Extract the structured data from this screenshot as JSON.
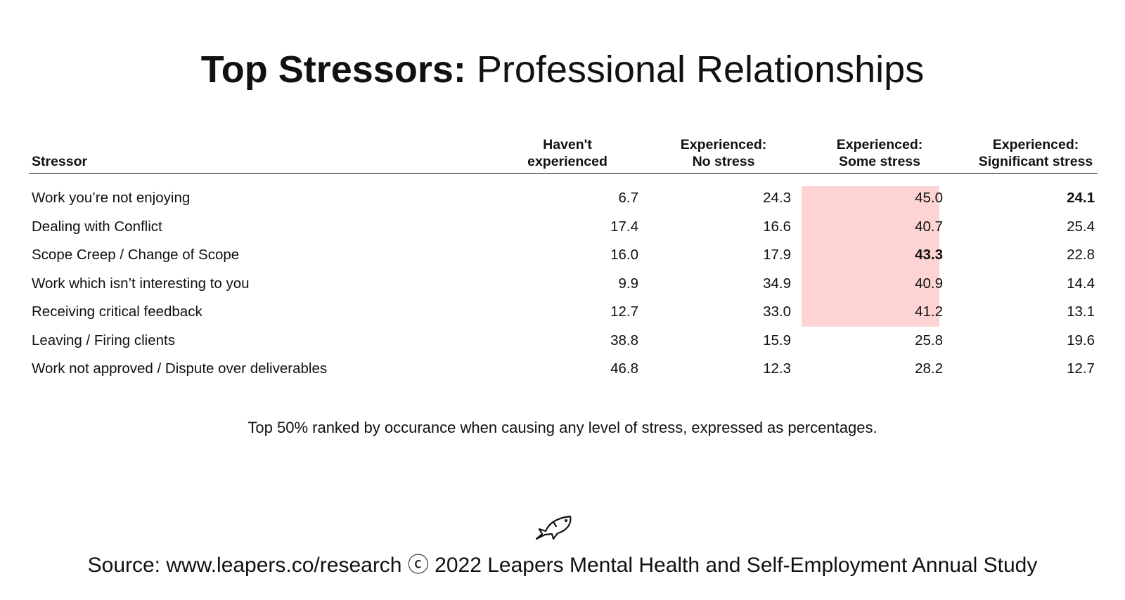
{
  "title": {
    "bold": "Top Stressors:",
    "regular": "Professional Relationships"
  },
  "chart_data": {
    "type": "table",
    "columns": {
      "stressor": "Stressor",
      "c1": {
        "line1": "Haven't",
        "line2": "experienced"
      },
      "c2": {
        "line1": "Experienced:",
        "line2": "No stress"
      },
      "c3": {
        "line1": "Experienced:",
        "line2": "Some stress"
      },
      "c4": {
        "line1": "Experienced:",
        "line2": "Significant stress"
      }
    },
    "rows": [
      {
        "label": "Work you’re not enjoying",
        "values": [
          "6.7",
          "24.3",
          "45.0",
          "24.1"
        ]
      },
      {
        "label": "Dealing with Conflict",
        "values": [
          "17.4",
          "16.6",
          "40.7",
          "25.4"
        ]
      },
      {
        "label": "Scope Creep / Change of Scope",
        "values": [
          "16.0",
          "17.9",
          "43.3",
          "22.8"
        ]
      },
      {
        "label": "Work which isn’t interesting to you",
        "values": [
          "9.9",
          "34.9",
          "40.9",
          "14.4"
        ]
      },
      {
        "label": "Receiving critical feedback",
        "values": [
          "12.7",
          "33.0",
          "41.2",
          "13.1"
        ]
      },
      {
        "label": "Leaving / Firing clients",
        "values": [
          "38.8",
          "15.9",
          "25.8",
          "19.6"
        ]
      },
      {
        "label": "Work not approved / Dispute over deliverables",
        "values": [
          "46.8",
          "12.3",
          "28.2",
          "12.7"
        ]
      }
    ],
    "bold_cells": [
      {
        "row": 0,
        "col": 3
      },
      {
        "row": 2,
        "col": 2
      }
    ],
    "highlight": {
      "column": 2,
      "rows": [
        0,
        1,
        2,
        3,
        4
      ],
      "color": "#fdd3d3"
    }
  },
  "note": "Top 50% ranked by occurance when causing any level of stress, expressed as percentages.",
  "logo": {
    "icon": "fish-icon"
  },
  "source": "Source: www.leapers.co/research ⓒ 2022 Leapers Mental Health and Self-Employment Annual Study"
}
